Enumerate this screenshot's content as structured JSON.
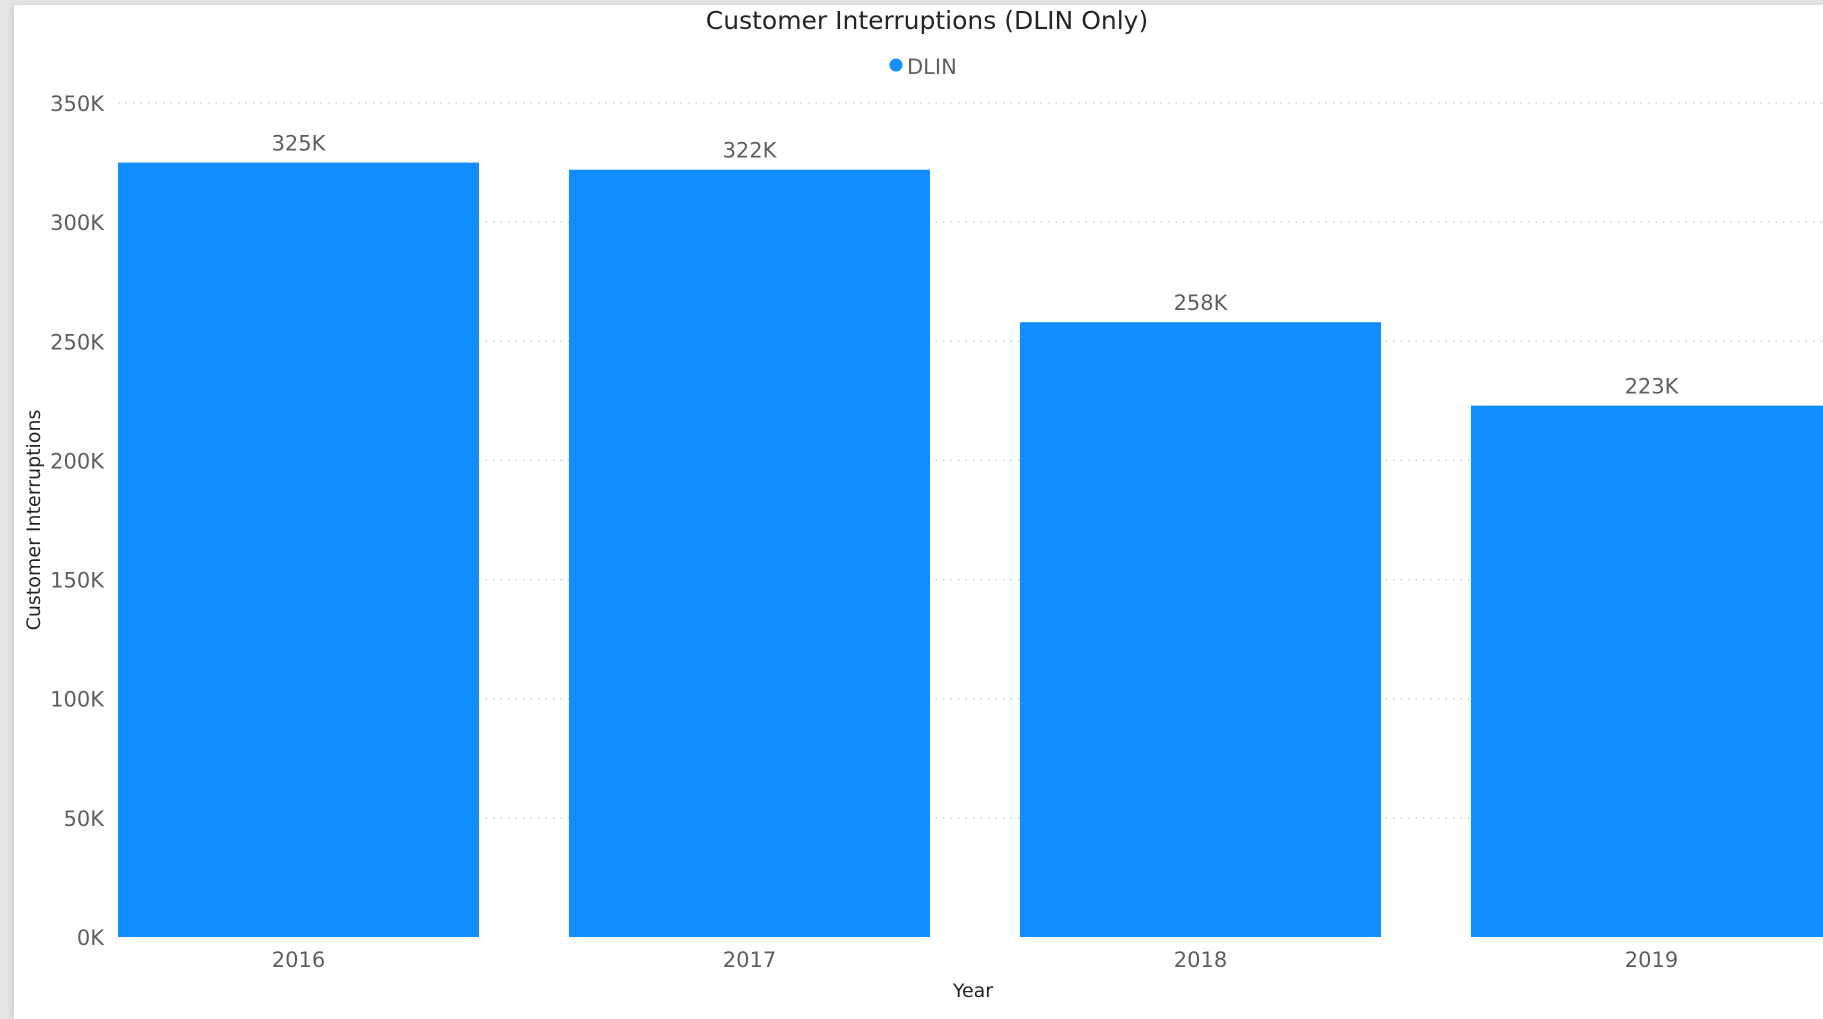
{
  "chart_data": {
    "type": "bar",
    "title": "Customer Interruptions (DLIN Only)",
    "xlabel": "Year",
    "ylabel": "Customer Interruptions",
    "categories": [
      "2016",
      "2017",
      "2018",
      "2019"
    ],
    "series": [
      {
        "name": "DLIN",
        "values": [
          325000,
          322000,
          258000,
          223000
        ],
        "data_labels": [
          "325K",
          "322K",
          "258K",
          "223K"
        ],
        "color": "#118dff"
      }
    ],
    "ylim": [
      0,
      350000
    ],
    "yticks": [
      0,
      50000,
      100000,
      150000,
      200000,
      250000,
      300000,
      350000
    ],
    "ytick_labels": [
      "0K",
      "50K",
      "100K",
      "150K",
      "200K",
      "250K",
      "300K",
      "350K"
    ],
    "grid": true,
    "legend_position": "top-center"
  }
}
